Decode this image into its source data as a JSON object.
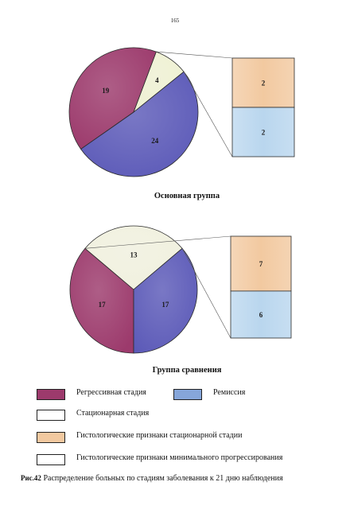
{
  "page": {
    "number": "165",
    "caption_prefix": "Рис.42",
    "caption": "Распределение больных по стадиям заболевания к 21 дню наблюдения"
  },
  "colors": {
    "regression": "#9c3a6c",
    "remission": "#86a6da",
    "stationary": "#eef0d2",
    "histo_stationary": "#f2c9a0",
    "histo_minimal": "#b9d6ee",
    "stationary_compare": "#f0f0de",
    "pie_blue": "#5c5ab8"
  },
  "legend": [
    {
      "label": "Регрессивная стадия",
      "color": "#9c3a6c"
    },
    {
      "label": "Ремиссия",
      "color": "#86a6da"
    },
    {
      "label": "Стационарная стадия",
      "color": "#ffffff"
    },
    {
      "label": "Гистологические признаки стационарной стадии",
      "color": "#f2c9a0"
    },
    {
      "label": "Гистологические признаки минимального прогрессирования",
      "color": "#ffffff"
    }
  ],
  "chart_data": [
    {
      "type": "pie",
      "title": "Основная группа",
      "slices": [
        {
          "label": "",
          "value": 19,
          "color": "#9c3a6c"
        },
        {
          "label": "",
          "value": 4,
          "color": "#eef0d2"
        },
        {
          "label": "",
          "value": 24,
          "color": "#5c5ab8"
        }
      ],
      "breakout": {
        "of_slice_value": 4,
        "segments": [
          {
            "label": "",
            "value": 2,
            "color": "#f2c9a0"
          },
          {
            "label": "",
            "value": 2,
            "color": "#b9d6ee"
          }
        ]
      }
    },
    {
      "type": "pie",
      "title": "Группа сравнения",
      "slices": [
        {
          "label": "",
          "value": 17,
          "color": "#9c3a6c"
        },
        {
          "label": "",
          "value": 13,
          "color": "#f0f0de"
        },
        {
          "label": "",
          "value": 17,
          "color": "#5c5ab8"
        }
      ],
      "breakout": {
        "of_slice_value": 13,
        "segments": [
          {
            "label": "",
            "value": 7,
            "color": "#f2c9a0"
          },
          {
            "label": "",
            "value": 6,
            "color": "#b9d6ee"
          }
        ]
      }
    }
  ]
}
